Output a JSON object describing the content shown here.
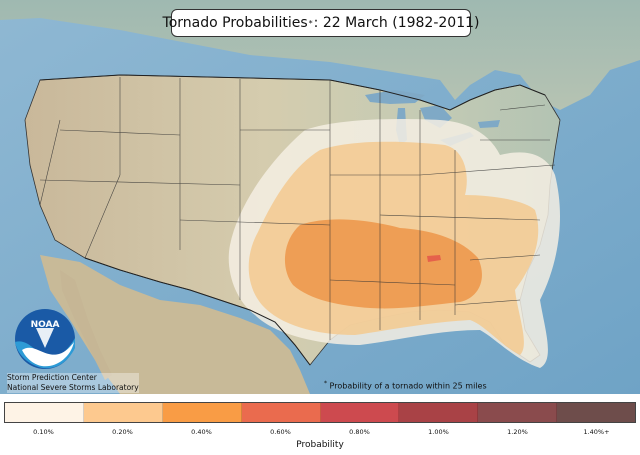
{
  "title": {
    "main": "Tornado Probabilities",
    "marker": "*",
    "rest": ": 22 March (1982-2011)"
  },
  "footnote": {
    "marker": "*",
    "text": "Probability of a tornado within 25 miles"
  },
  "organization": {
    "line1": "Storm Prediction Center",
    "line2": "National Severe Storms Laboratory",
    "logo_text": "NOAA"
  },
  "legend": {
    "title": "Probability",
    "bins": [
      {
        "label": "0.10%",
        "color": "#fef3e6"
      },
      {
        "label": "0.20%",
        "color": "#fdc98f"
      },
      {
        "label": "0.40%",
        "color": "#f99c45"
      },
      {
        "label": "0.60%",
        "color": "#ea6b4e"
      },
      {
        "label": "0.80%",
        "color": "#cd4a4f"
      },
      {
        "label": "1.00%",
        "color": "#a94246"
      },
      {
        "label": "1.20%",
        "color": "#8a4b4d"
      },
      {
        "label": "1.40%+",
        "color": "#6e4d4b"
      }
    ]
  },
  "colors": {
    "ocean": "#7fb0cf",
    "land": "#cfc6a6"
  }
}
